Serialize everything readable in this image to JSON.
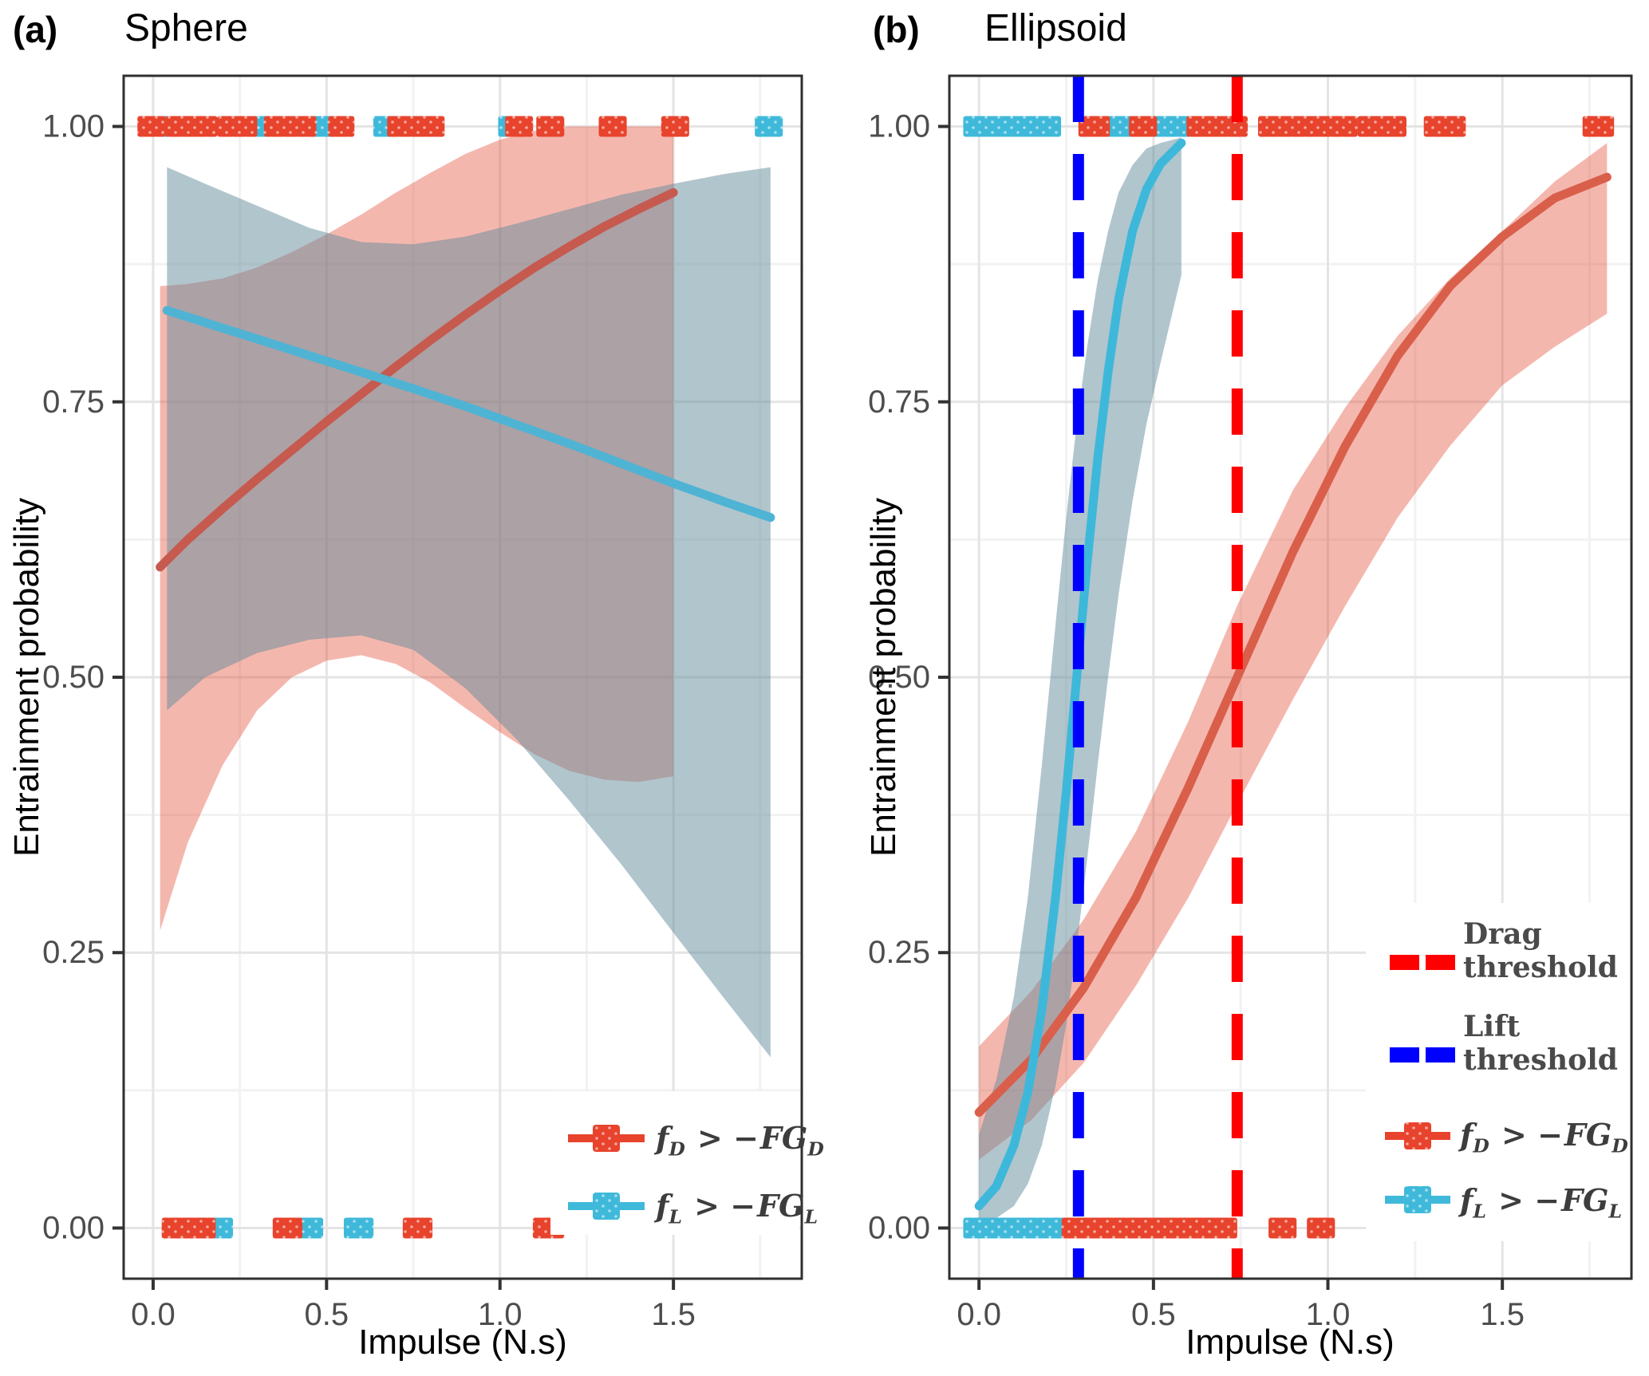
{
  "figure": {
    "panels": [
      {
        "tag": "(a)",
        "title": "Sphere"
      },
      {
        "tag": "(b)",
        "title": "Ellipsoid"
      }
    ]
  },
  "axes": {
    "x_label": "Impulse (N.s)",
    "y_label": "Entrainment probability",
    "x_ticks": [
      {
        "v": 0,
        "label": "0.0"
      },
      {
        "v": 0.5,
        "label": "0.5"
      },
      {
        "v": 1,
        "label": "1.0"
      },
      {
        "v": 1.5,
        "label": "1.5"
      }
    ],
    "y_ticks": [
      {
        "v": 0,
        "label": "0.00"
      },
      {
        "v": 0.25,
        "label": "0.25"
      },
      {
        "v": 0.5,
        "label": "0.50"
      },
      {
        "v": 0.75,
        "label": "0.75"
      },
      {
        "v": 1,
        "label": "1.00"
      }
    ],
    "x_minor": [
      0.25,
      0.75,
      1.25,
      1.75
    ],
    "y_minor": [
      0.125,
      0.375,
      0.625,
      0.875
    ],
    "x_domain": [
      -0.085,
      1.87
    ],
    "y_domain": [
      -0.046,
      1.046
    ]
  },
  "colors": {
    "red_point": "#E8432C",
    "blue_point": "#3FB9DA",
    "red_line_a": "#C65A4F",
    "blue_line_a": "#4FB3D4",
    "red_line_b": "#D95F4B",
    "blue_line_b": "#3EB8DA",
    "red_band": "rgba(228,75,53,0.40)",
    "blue_band": "rgba(100,140,155,0.50)",
    "drag_threshold": "#FF0000",
    "lift_threshold": "#0000FF",
    "grid_major": "#E4E4E4",
    "grid_minor": "#F2F2F2",
    "panel_border": "#2F2F2F",
    "tick_text": "#4D4D4D",
    "legend_text": "#4A4A4A"
  },
  "legend": {
    "drag_series": {
      "sym": "f",
      "sub": "D",
      "op": " > −",
      "fg": "FG",
      "fgsub": "D"
    },
    "lift_series": {
      "sym": "f",
      "sub": "L",
      "op": " > −",
      "fg": "FG",
      "fgsub": "L"
    },
    "drag_threshold_line1": "Drag",
    "drag_threshold_line2": "threshold",
    "lift_threshold_line1": "Lift",
    "lift_threshold_line2": "threshold"
  },
  "chart_data": [
    {
      "panel": "a",
      "type": "line",
      "title": "Sphere",
      "xlabel": "Impulse (N.s)",
      "ylabel": "Entrainment probability",
      "xlim": [
        -0.085,
        1.87
      ],
      "ylim": [
        -0.046,
        1.046
      ],
      "x_major_ticks": [
        0,
        0.5,
        1.0,
        1.5
      ],
      "y_major_ticks": [
        0,
        0.25,
        0.5,
        0.75,
        1.0
      ],
      "grid": true,
      "legend_position": "bottom-right-inside",
      "series": [
        {
          "name": "drag: f_D > −FG_D",
          "role": "drag",
          "line_x": [
            0.02,
            0.1,
            0.2,
            0.3,
            0.4,
            0.5,
            0.6,
            0.7,
            0.8,
            0.9,
            1.0,
            1.1,
            1.2,
            1.3,
            1.4,
            1.5
          ],
          "line_y": [
            0.6,
            0.625,
            0.653,
            0.68,
            0.706,
            0.732,
            0.757,
            0.782,
            0.806,
            0.829,
            0.851,
            0.872,
            0.891,
            0.909,
            0.925,
            0.94
          ],
          "band_x": [
            0.02,
            0.1,
            0.2,
            0.3,
            0.4,
            0.5,
            0.6,
            0.7,
            0.8,
            0.9,
            1.0,
            1.1,
            1.2,
            1.3,
            1.4,
            1.5
          ],
          "band_upper": [
            0.855,
            0.857,
            0.862,
            0.872,
            0.886,
            0.902,
            0.92,
            0.94,
            0.958,
            0.975,
            0.988,
            0.996,
            1.0,
            1.0,
            1.0,
            1.0
          ],
          "band_lower": [
            0.27,
            0.35,
            0.42,
            0.47,
            0.5,
            0.515,
            0.52,
            0.512,
            0.495,
            0.472,
            0.45,
            0.43,
            0.415,
            0.407,
            0.405,
            0.41
          ],
          "rug_top_segments": [
            [
              -0.02,
              0.01
            ],
            [
              0.06,
              0.095
            ],
            [
              0.125,
              0.16
            ],
            [
              0.21,
              0.245
            ],
            [
              0.25,
              0.275
            ],
            [
              0.345,
              0.365
            ],
            [
              0.385,
              0.405
            ],
            [
              0.425,
              0.445
            ],
            [
              0.53,
              0.555
            ],
            [
              0.7,
              0.725
            ],
            [
              0.745,
              0.775
            ],
            [
              0.79,
              0.815
            ],
            [
              1.04,
              1.07
            ],
            [
              1.13,
              1.16
            ],
            [
              1.31,
              1.34
            ],
            [
              1.49,
              1.52
            ]
          ],
          "rug_bottom_segments": [
            [
              0.05,
              0.105
            ],
            [
              0.12,
              0.155
            ],
            [
              0.37,
              0.405
            ],
            [
              0.745,
              0.78
            ],
            [
              1.12,
              1.16
            ]
          ]
        },
        {
          "name": "lift: f_L > −FG_L",
          "role": "lift",
          "line_x": [
            0.04,
            0.15,
            0.3,
            0.45,
            0.6,
            0.75,
            0.9,
            1.05,
            1.2,
            1.35,
            1.5,
            1.65,
            1.78
          ],
          "line_y": [
            0.833,
            0.822,
            0.807,
            0.792,
            0.777,
            0.762,
            0.746,
            0.729,
            0.712,
            0.694,
            0.676,
            0.659,
            0.645
          ],
          "band_x": [
            0.04,
            0.15,
            0.3,
            0.45,
            0.6,
            0.75,
            0.9,
            1.05,
            1.2,
            1.35,
            1.5,
            1.65,
            1.78
          ],
          "band_upper": [
            0.963,
            0.948,
            0.928,
            0.908,
            0.895,
            0.893,
            0.9,
            0.912,
            0.925,
            0.938,
            0.948,
            0.957,
            0.963
          ],
          "band_lower": [
            0.47,
            0.5,
            0.522,
            0.534,
            0.538,
            0.525,
            0.49,
            0.443,
            0.388,
            0.33,
            0.268,
            0.207,
            0.155
          ],
          "rug_top_segments": [
            [
              0.01,
              0.05
            ],
            [
              0.095,
              0.125
            ],
            [
              0.3,
              0.46
            ],
            [
              0.475,
              0.5
            ],
            [
              0.52,
              0.545
            ],
            [
              0.66,
              0.685
            ],
            [
              1.02,
              1.045
            ],
            [
              1.76,
              1.79
            ]
          ],
          "rug_bottom_segments": [
            [
              0.165,
              0.205
            ],
            [
              0.43,
              0.465
            ],
            [
              0.575,
              0.61
            ]
          ]
        }
      ],
      "thresholds": []
    },
    {
      "panel": "b",
      "type": "line",
      "title": "Ellipsoid",
      "xlabel": "Impulse (N.s)",
      "ylabel": "Entrainment probability",
      "xlim": [
        -0.085,
        1.87
      ],
      "ylim": [
        -0.046,
        1.046
      ],
      "x_major_ticks": [
        0,
        0.5,
        1.0,
        1.5
      ],
      "y_major_ticks": [
        0,
        0.25,
        0.5,
        0.75,
        1.0
      ],
      "grid": true,
      "legend_position": "right-inside",
      "series": [
        {
          "name": "drag: f_D > −FG_D",
          "role": "drag",
          "line_x": [
            0,
            0.15,
            0.3,
            0.45,
            0.6,
            0.74,
            0.9,
            1.05,
            1.2,
            1.35,
            1.5,
            1.65,
            1.8
          ],
          "line_y": [
            0.105,
            0.153,
            0.218,
            0.3,
            0.4,
            0.5,
            0.614,
            0.71,
            0.792,
            0.855,
            0.9,
            0.935,
            0.954
          ],
          "band_x": [
            0,
            0.15,
            0.3,
            0.45,
            0.6,
            0.74,
            0.9,
            1.05,
            1.2,
            1.35,
            1.5,
            1.65,
            1.8
          ],
          "band_upper": [
            0.165,
            0.215,
            0.28,
            0.36,
            0.46,
            0.565,
            0.67,
            0.745,
            0.81,
            0.862,
            0.905,
            0.95,
            0.985
          ],
          "band_lower": [
            0.062,
            0.098,
            0.15,
            0.22,
            0.3,
            0.385,
            0.48,
            0.565,
            0.645,
            0.71,
            0.765,
            0.8,
            0.83
          ],
          "rug_top_segments": [
            [
              0.31,
              0.35
            ],
            [
              0.455,
              0.485
            ],
            [
              0.62,
              0.7
            ],
            [
              0.71,
              0.745
            ],
            [
              0.825,
              0.87
            ],
            [
              0.895,
              0.935
            ],
            [
              0.975,
              1.06
            ],
            [
              1.11,
              1.2
            ],
            [
              1.3,
              1.37
            ],
            [
              1.755,
              1.795
            ]
          ],
          "rug_bottom_segments": [
            [
              0.262,
              0.655
            ],
            [
              0.69,
              0.715
            ],
            [
              0.855,
              0.885
            ],
            [
              0.965,
              0.995
            ]
          ]
        },
        {
          "name": "lift: f_L > −FG_L",
          "role": "lift",
          "line_x": [
            0,
            0.05,
            0.1,
            0.14,
            0.18,
            0.22,
            0.25,
            0.28,
            0.31,
            0.34,
            0.37,
            0.4,
            0.44,
            0.48,
            0.52,
            0.58
          ],
          "line_y": [
            0.02,
            0.038,
            0.075,
            0.123,
            0.198,
            0.302,
            0.396,
            0.5,
            0.604,
            0.698,
            0.777,
            0.843,
            0.905,
            0.943,
            0.966,
            0.985
          ],
          "band_x": [
            0,
            0.05,
            0.1,
            0.14,
            0.18,
            0.22,
            0.25,
            0.28,
            0.31,
            0.34,
            0.37,
            0.4,
            0.44,
            0.48,
            0.52,
            0.58
          ],
          "band_upper": [
            0.085,
            0.135,
            0.21,
            0.3,
            0.42,
            0.55,
            0.645,
            0.73,
            0.8,
            0.86,
            0.905,
            0.94,
            0.965,
            0.98,
            0.985,
            0.99
          ],
          "band_lower": [
            0.004,
            0.009,
            0.02,
            0.04,
            0.075,
            0.13,
            0.185,
            0.255,
            0.335,
            0.42,
            0.5,
            0.575,
            0.66,
            0.73,
            0.785,
            0.865
          ],
          "rug_top_segments": [
            [
              -0.02,
              0.135
            ],
            [
              0.16,
              0.21
            ],
            [
              0.37,
              0.455
            ],
            [
              0.485,
              0.59
            ]
          ],
          "rug_bottom_segments": [
            [
              -0.02,
              0.262
            ]
          ]
        }
      ],
      "thresholds": [
        {
          "label": "Drag threshold",
          "x": 0.74,
          "role": "drag_threshold"
        },
        {
          "label": "Lift threshold",
          "x": 0.285,
          "role": "lift_threshold"
        }
      ]
    }
  ]
}
